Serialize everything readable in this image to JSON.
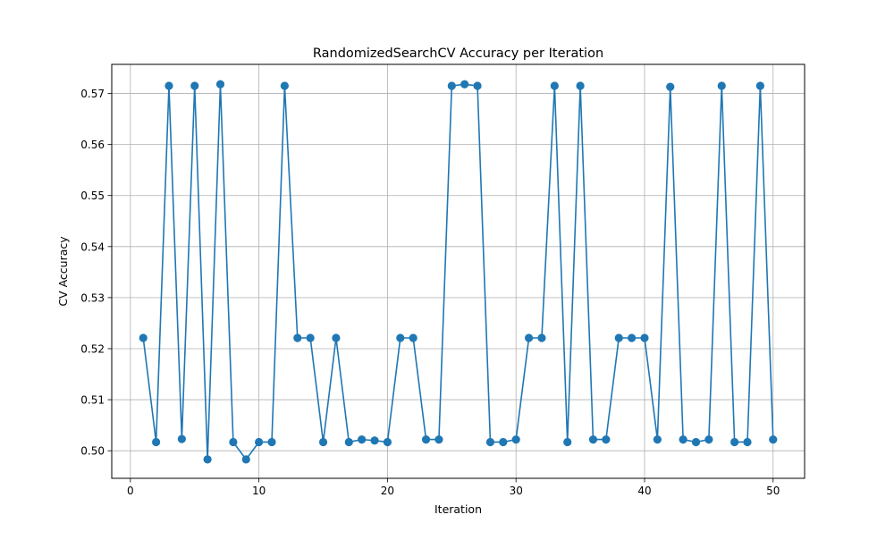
{
  "chart_data": {
    "type": "line",
    "title": "RandomizedSearchCV Accuracy per Iteration",
    "xlabel": "Iteration",
    "ylabel": "CV Accuracy",
    "xlim": [
      -1.45,
      52.45
    ],
    "ylim": [
      0.4946,
      0.5757
    ],
    "xticks": [
      0,
      10,
      20,
      30,
      40,
      50
    ],
    "xtick_labels": [
      "0",
      "10",
      "20",
      "30",
      "40",
      "50"
    ],
    "yticks": [
      0.5,
      0.51,
      0.52,
      0.53,
      0.54,
      0.55,
      0.56,
      0.57
    ],
    "ytick_labels": [
      "0.50",
      "0.51",
      "0.52",
      "0.53",
      "0.54",
      "0.55",
      "0.56",
      "0.57"
    ],
    "grid": true,
    "color": "#1f77b4",
    "series": [
      {
        "marker": "circle",
        "x": [
          1,
          2,
          3,
          4,
          5,
          6,
          7,
          8,
          9,
          10,
          11,
          12,
          13,
          14,
          15,
          16,
          17,
          18,
          19,
          20,
          21,
          22,
          23,
          24,
          25,
          26,
          27,
          28,
          29,
          30,
          31,
          32,
          33,
          34,
          35,
          36,
          37,
          38,
          39,
          40,
          41,
          42,
          43,
          44,
          45,
          46,
          47,
          48,
          49,
          50
        ],
        "y": [
          0.5221,
          0.5017,
          0.5715,
          0.5023,
          0.5715,
          0.4983,
          0.5718,
          0.5017,
          0.4983,
          0.5017,
          0.5017,
          0.5715,
          0.5221,
          0.5221,
          0.5017,
          0.5221,
          0.5017,
          0.5022,
          0.502,
          0.5017,
          0.5221,
          0.5221,
          0.5022,
          0.5022,
          0.5715,
          0.5718,
          0.5715,
          0.5017,
          0.5017,
          0.5022,
          0.5221,
          0.5221,
          0.5715,
          0.5017,
          0.5715,
          0.5022,
          0.5022,
          0.5221,
          0.5221,
          0.5221,
          0.5022,
          0.5713,
          0.5022,
          0.5017,
          0.5022,
          0.5715,
          0.5017,
          0.5017,
          0.5715,
          0.5022
        ]
      }
    ]
  }
}
